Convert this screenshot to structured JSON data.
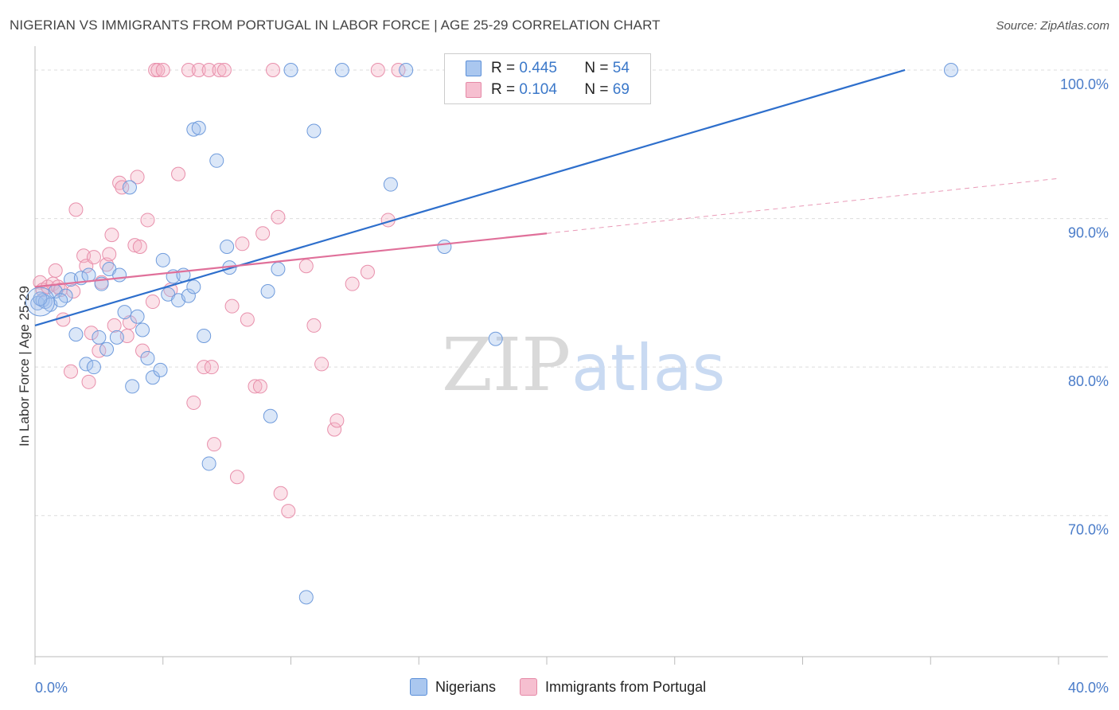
{
  "title": "NIGERIAN VS IMMIGRANTS FROM PORTUGAL IN LABOR FORCE | AGE 25-29 CORRELATION CHART",
  "source": "Source: ZipAtlas.com",
  "watermark": {
    "zip": "ZIP",
    "atlas": "atlas"
  },
  "legend": {
    "rows": [
      {
        "r_label": "R =",
        "r_value": "0.445",
        "n_label": "N =",
        "n_value": "54",
        "color": "#aac7ef",
        "border": "#5b8fd8"
      },
      {
        "r_label": "R =",
        "r_value": "0.104",
        "n_label": "N =",
        "n_value": "69",
        "color": "#f6bfd0",
        "border": "#e58aa7"
      }
    ]
  },
  "bottom_legend": [
    "Nigerians",
    "Immigrants from Portugal"
  ],
  "colors": {
    "blue_fill": "rgba(160,192,236,0.38)",
    "blue_stroke": "#6f9bdc",
    "blue_line": "#2e6fcc",
    "pink_fill": "rgba(245,178,198,0.38)",
    "pink_stroke": "#e88fab",
    "pink_line": "#e0709a",
    "grid": "#dddddd",
    "axis_text": "#4a7cc9"
  },
  "chart_data": {
    "type": "scatter",
    "title": "NIGERIAN VS IMMIGRANTS FROM PORTUGAL IN LABOR FORCE | AGE 25-29 CORRELATION CHART",
    "xlabel": "",
    "ylabel": "In Labor Force | Age 25-29",
    "xlim": [
      0,
      40
    ],
    "ylim": [
      60.5,
      101.5
    ],
    "x_tick_labels": [
      "0.0%",
      "40.0%"
    ],
    "y_ticks": [
      70,
      80,
      90,
      100
    ],
    "y_tick_labels": [
      "70.0%",
      "80.0%",
      "90.0%",
      "100.0%"
    ],
    "grid": true,
    "legend_position": "top-center",
    "series": [
      {
        "name": "Nigerians",
        "r": 0.445,
        "n": 54,
        "trend": {
          "x0": 0,
          "y0": 82.8,
          "x1": 34.0,
          "y1": 100.0,
          "dashed_until": null
        },
        "points": [
          [
            0.1,
            84.3
          ],
          [
            0.3,
            84.5
          ],
          [
            0.4,
            84.4
          ],
          [
            0.6,
            84.2
          ],
          [
            0.8,
            85.1
          ],
          [
            1.2,
            84.8
          ],
          [
            1.4,
            85.9
          ],
          [
            1.6,
            82.2
          ],
          [
            1.8,
            86.0
          ],
          [
            2.0,
            80.2
          ],
          [
            2.1,
            86.2
          ],
          [
            2.3,
            80.0
          ],
          [
            2.5,
            82.0
          ],
          [
            2.6,
            85.6
          ],
          [
            2.8,
            81.2
          ],
          [
            2.9,
            86.6
          ],
          [
            3.2,
            82.0
          ],
          [
            3.3,
            86.2
          ],
          [
            3.5,
            83.7
          ],
          [
            3.7,
            92.1
          ],
          [
            3.8,
            78.7
          ],
          [
            4.0,
            83.4
          ],
          [
            4.2,
            82.5
          ],
          [
            4.4,
            80.6
          ],
          [
            4.6,
            79.3
          ],
          [
            4.9,
            79.8
          ],
          [
            5.0,
            87.2
          ],
          [
            5.2,
            84.9
          ],
          [
            5.4,
            86.1
          ],
          [
            5.6,
            84.5
          ],
          [
            5.8,
            86.2
          ],
          [
            6.0,
            84.8
          ],
          [
            6.2,
            85.4
          ],
          [
            6.2,
            96.0
          ],
          [
            6.4,
            96.1
          ],
          [
            6.6,
            82.1
          ],
          [
            6.8,
            73.5
          ],
          [
            7.1,
            93.9
          ],
          [
            7.5,
            88.1
          ],
          [
            7.6,
            86.7
          ],
          [
            9.1,
            85.1
          ],
          [
            9.2,
            76.7
          ],
          [
            9.5,
            86.6
          ],
          [
            10.0,
            100.0
          ],
          [
            10.6,
            64.5
          ],
          [
            10.9,
            95.9
          ],
          [
            12.0,
            100.0
          ],
          [
            13.9,
            92.3
          ],
          [
            14.5,
            100.0
          ],
          [
            16.0,
            88.1
          ],
          [
            18.0,
            81.9
          ],
          [
            35.8,
            100.0
          ],
          [
            0.2,
            84.6
          ],
          [
            1.0,
            84.5
          ]
        ]
      },
      {
        "name": "Immigrants from Portugal",
        "r": 0.104,
        "n": 69,
        "trend": {
          "x0": 0,
          "y0": 85.4,
          "x1": 20.0,
          "y1": 89.0,
          "dash_x1": 40.0,
          "dash_y1": 92.7
        },
        "points": [
          [
            0.2,
            85.7
          ],
          [
            0.3,
            85.2
          ],
          [
            0.5,
            85.4
          ],
          [
            0.7,
            85.6
          ],
          [
            0.8,
            86.5
          ],
          [
            0.9,
            85.4
          ],
          [
            1.0,
            85.2
          ],
          [
            1.1,
            83.2
          ],
          [
            1.4,
            79.7
          ],
          [
            1.5,
            85.1
          ],
          [
            1.6,
            90.6
          ],
          [
            1.9,
            87.5
          ],
          [
            2.0,
            86.8
          ],
          [
            2.1,
            79.0
          ],
          [
            2.2,
            82.3
          ],
          [
            2.3,
            87.4
          ],
          [
            2.5,
            81.1
          ],
          [
            2.6,
            85.7
          ],
          [
            2.8,
            86.9
          ],
          [
            2.9,
            87.6
          ],
          [
            3.0,
            88.9
          ],
          [
            3.1,
            82.8
          ],
          [
            3.3,
            92.4
          ],
          [
            3.4,
            92.1
          ],
          [
            3.6,
            82.1
          ],
          [
            3.7,
            83.0
          ],
          [
            3.9,
            88.2
          ],
          [
            4.0,
            92.8
          ],
          [
            4.1,
            88.1
          ],
          [
            4.2,
            81.1
          ],
          [
            4.4,
            89.9
          ],
          [
            4.6,
            84.4
          ],
          [
            4.7,
            100.0
          ],
          [
            4.8,
            100.0
          ],
          [
            5.0,
            100.0
          ],
          [
            5.3,
            85.2
          ],
          [
            5.6,
            93.0
          ],
          [
            6.0,
            100.0
          ],
          [
            6.2,
            77.6
          ],
          [
            6.4,
            100.0
          ],
          [
            6.6,
            80.0
          ],
          [
            6.8,
            100.0
          ],
          [
            6.9,
            80.0
          ],
          [
            7.0,
            74.8
          ],
          [
            7.2,
            100.0
          ],
          [
            7.4,
            100.0
          ],
          [
            7.7,
            84.1
          ],
          [
            7.9,
            72.6
          ],
          [
            8.1,
            88.3
          ],
          [
            8.3,
            83.2
          ],
          [
            8.6,
            78.7
          ],
          [
            8.8,
            78.7
          ],
          [
            8.9,
            89.0
          ],
          [
            9.3,
            100.0
          ],
          [
            9.5,
            90.1
          ],
          [
            9.6,
            71.5
          ],
          [
            9.9,
            70.3
          ],
          [
            10.6,
            86.8
          ],
          [
            10.9,
            82.8
          ],
          [
            11.2,
            80.2
          ],
          [
            11.7,
            75.8
          ],
          [
            11.8,
            76.4
          ],
          [
            12.4,
            85.6
          ],
          [
            13.0,
            86.4
          ],
          [
            13.4,
            100.0
          ],
          [
            13.8,
            89.9
          ],
          [
            14.2,
            100.0
          ],
          [
            16.3,
            100.0
          ],
          [
            16.6,
            100.0
          ]
        ]
      }
    ]
  }
}
